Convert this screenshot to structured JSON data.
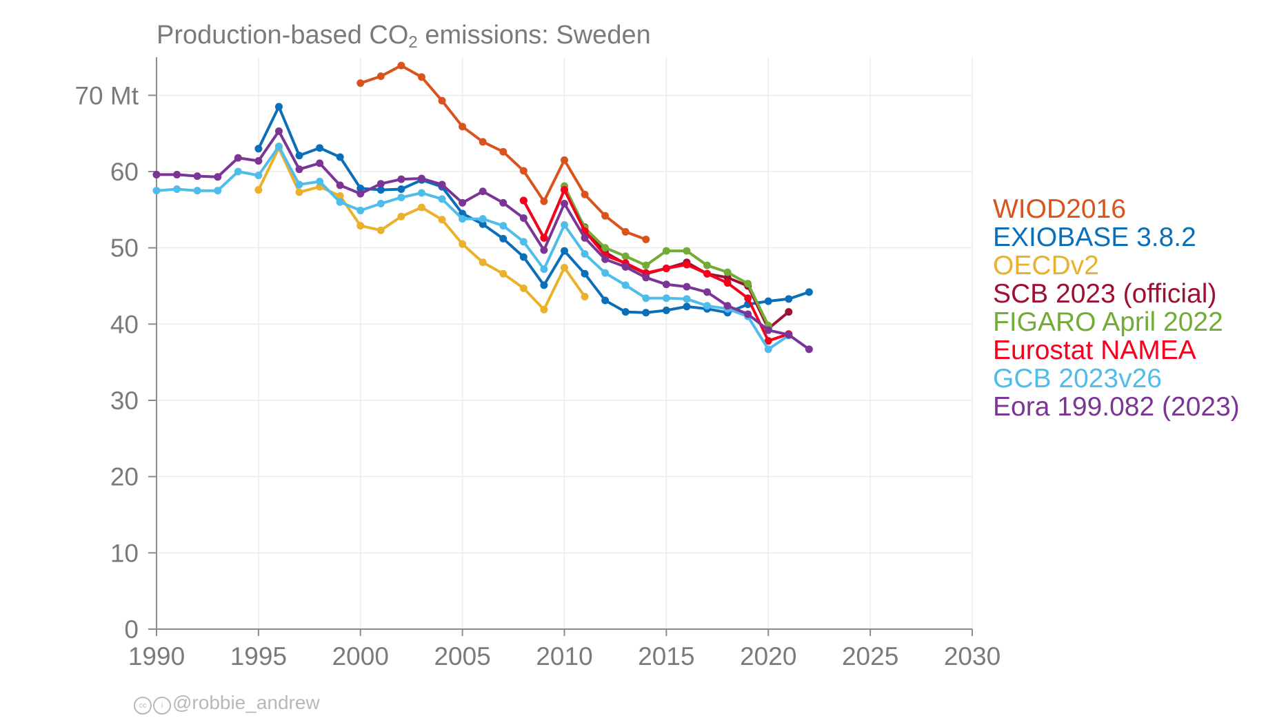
{
  "title": {
    "prefix": "Production-based CO",
    "sub": "2",
    "suffix": " emissions: Sweden"
  },
  "credit": {
    "cc_icon": "creative-commons-icon",
    "by_icon": "attribution-icon",
    "handle": "@robbie_andrew"
  },
  "colors": {
    "background": "#ffffff",
    "grid": "#ebebeb",
    "axis": "#8c8c8c",
    "tick_text": "#7a7a7a"
  },
  "chart_data": {
    "type": "line",
    "title": "Production-based CO2 emissions: Sweden",
    "xlabel": "",
    "ylabel": "",
    "xlim": [
      1990,
      2030
    ],
    "ylim": [
      0,
      75
    ],
    "x_ticks": [
      1990,
      1995,
      2000,
      2005,
      2010,
      2015,
      2020,
      2025,
      2030
    ],
    "y_ticks": [
      0,
      10,
      20,
      30,
      40,
      50,
      60,
      70
    ],
    "y_tick_labels": [
      "0",
      "10",
      "20",
      "30",
      "40",
      "50",
      "60",
      "70 Mt"
    ],
    "grid": true,
    "legend_position": "right",
    "series": [
      {
        "name": "WIOD2016",
        "color": "#d9541c",
        "x": [
          2000,
          2001,
          2002,
          2003,
          2004,
          2005,
          2006,
          2007,
          2008,
          2009,
          2010,
          2011,
          2012,
          2013,
          2014
        ],
        "y": [
          71.6,
          72.5,
          73.9,
          72.4,
          69.3,
          65.9,
          63.9,
          62.6,
          60.1,
          56.1,
          61.5,
          57.0,
          54.2,
          52.1,
          51.1
        ]
      },
      {
        "name": "EXIOBASE 3.8.2",
        "color": "#0a6eb8",
        "x": [
          1995,
          1996,
          1997,
          1998,
          1999,
          2000,
          2001,
          2002,
          2003,
          2004,
          2005,
          2006,
          2007,
          2008,
          2009,
          2010,
          2011,
          2012,
          2013,
          2014,
          2015,
          2016,
          2017,
          2018,
          2019,
          2020,
          2021,
          2022
        ],
        "y": [
          63.0,
          68.5,
          62.1,
          63.1,
          61.9,
          57.8,
          57.6,
          57.7,
          58.9,
          58.0,
          54.5,
          53.1,
          51.2,
          48.8,
          45.1,
          49.6,
          46.6,
          43.1,
          41.6,
          41.5,
          41.8,
          42.3,
          42.0,
          41.5,
          42.6,
          43.0,
          43.3,
          44.2
        ]
      },
      {
        "name": "OECDv2",
        "color": "#ebb12c",
        "x": [
          1995,
          1996,
          1997,
          1998,
          1999,
          2000,
          2001,
          2002,
          2003,
          2004,
          2005,
          2006,
          2007,
          2008,
          2009,
          2010,
          2011
        ],
        "y": [
          57.6,
          63.1,
          57.3,
          58.0,
          56.8,
          52.9,
          52.3,
          54.1,
          55.3,
          53.7,
          50.5,
          48.1,
          46.6,
          44.7,
          41.9,
          47.4,
          43.6
        ]
      },
      {
        "name": "SCB 2023 (official)",
        "color": "#9e1032",
        "x": [
          2008,
          2009,
          2010,
          2011,
          2012,
          2013,
          2014,
          2015,
          2016,
          2017,
          2018,
          2019,
          2020,
          2021
        ],
        "y": [
          56.2,
          51.3,
          57.6,
          52.7,
          49.4,
          47.9,
          46.6,
          47.3,
          48.1,
          46.6,
          46.1,
          45.0,
          39.4,
          41.6
        ]
      },
      {
        "name": "FIGARO April 2022",
        "color": "#72ac36",
        "x": [
          2010,
          2011,
          2012,
          2013,
          2014,
          2015,
          2016,
          2017,
          2018,
          2019,
          2020
        ],
        "y": [
          58.1,
          52.6,
          50.0,
          48.9,
          47.7,
          49.6,
          49.6,
          47.7,
          46.8,
          45.3,
          39.8
        ]
      },
      {
        "name": "Eurostat NAMEA",
        "color": "#f5001d",
        "x": [
          2008,
          2009,
          2010,
          2011,
          2012,
          2013,
          2014,
          2015,
          2016,
          2017,
          2018,
          2019,
          2020,
          2021
        ],
        "y": [
          56.2,
          51.3,
          57.6,
          52.2,
          49.0,
          48.0,
          46.7,
          47.3,
          47.8,
          46.6,
          45.4,
          43.4,
          37.8,
          38.7
        ]
      },
      {
        "name": "GCB 2023v26",
        "color": "#4fbdea",
        "x": [
          1990,
          1991,
          1992,
          1993,
          1994,
          1995,
          1996,
          1997,
          1998,
          1999,
          2000,
          2001,
          2002,
          2003,
          2004,
          2005,
          2006,
          2007,
          2008,
          2009,
          2010,
          2011,
          2012,
          2013,
          2014,
          2015,
          2016,
          2017,
          2018,
          2019,
          2020,
          2021
        ],
        "y": [
          57.5,
          57.7,
          57.5,
          57.5,
          60.0,
          59.5,
          63.3,
          58.3,
          58.7,
          56.0,
          54.9,
          55.8,
          56.6,
          57.2,
          56.4,
          53.8,
          53.8,
          52.9,
          50.8,
          47.2,
          53.0,
          49.2,
          46.7,
          45.1,
          43.4,
          43.4,
          43.3,
          42.4,
          42.0,
          41.0,
          36.7,
          38.5
        ]
      },
      {
        "name": "Eora 199.082 (2023)",
        "color": "#7b3594",
        "x": [
          1990,
          1991,
          1992,
          1993,
          1994,
          1995,
          1996,
          1997,
          1998,
          1999,
          2000,
          2001,
          2002,
          2003,
          2004,
          2005,
          2006,
          2007,
          2008,
          2009,
          2010,
          2011,
          2012,
          2013,
          2014,
          2015,
          2016,
          2017,
          2018,
          2019,
          2020,
          2021,
          2022
        ],
        "y": [
          59.6,
          59.6,
          59.4,
          59.3,
          61.8,
          61.4,
          65.3,
          60.3,
          61.1,
          58.2,
          57.1,
          58.4,
          59.0,
          59.1,
          58.3,
          55.9,
          57.4,
          55.9,
          53.9,
          49.7,
          55.8,
          51.3,
          48.5,
          47.5,
          46.1,
          45.2,
          44.9,
          44.2,
          42.4,
          41.3,
          39.2,
          38.6,
          36.7
        ]
      }
    ]
  }
}
